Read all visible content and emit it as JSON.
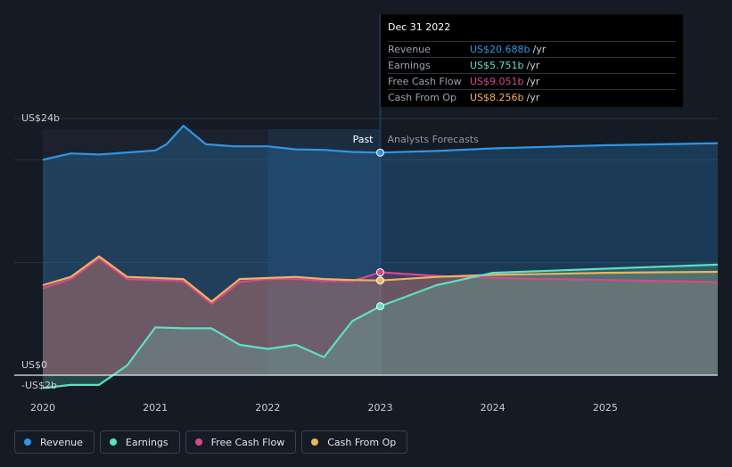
{
  "chart_data": {
    "type": "area",
    "y_axis": {
      "labels": [
        "US$24b",
        "US$0",
        "-US$2b"
      ],
      "ylim": [
        -2,
        24
      ]
    },
    "x_axis": {
      "tick_labels": [
        "2020",
        "2021",
        "2022",
        "2023",
        "2024",
        "2025"
      ],
      "xlim": [
        2020.0,
        2026.0
      ]
    },
    "regions": {
      "past_label": "Past",
      "forecast_label": "Analysts Forecasts",
      "divider_x": 2023.0
    },
    "series": [
      {
        "name": "Revenue",
        "color": "#2f96e8",
        "fill": true,
        "x": [
          2020.0,
          2020.25,
          2020.5,
          2020.75,
          2021.0,
          2021.1,
          2021.25,
          2021.45,
          2021.7,
          2022.0,
          2022.25,
          2022.5,
          2022.75,
          2023.0,
          2023.5,
          2024.0,
          2024.5,
          2025.0,
          2025.5,
          2026.0
        ],
        "y": [
          20.0,
          20.6,
          20.5,
          20.7,
          20.9,
          21.5,
          23.3,
          21.5,
          21.3,
          21.3,
          21.0,
          20.95,
          20.75,
          20.69,
          20.85,
          21.1,
          21.25,
          21.4,
          21.5,
          21.6
        ]
      },
      {
        "name": "Earnings",
        "color": "#5fe0c3",
        "fill": true,
        "x": [
          2020.0,
          2020.25,
          2020.5,
          2020.75,
          2021.0,
          2021.25,
          2021.5,
          2021.75,
          2022.0,
          2022.25,
          2022.5,
          2022.75,
          2023.0,
          2023.5,
          2024.0,
          2024.5,
          2025.0,
          2025.5,
          2026.0
        ],
        "y": [
          -2.2,
          -1.9,
          -1.9,
          0.0,
          3.7,
          3.6,
          3.6,
          2.0,
          1.6,
          2.0,
          0.8,
          4.3,
          5.751,
          7.8,
          9.0,
          9.2,
          9.4,
          9.6,
          9.8
        ]
      },
      {
        "name": "Free Cash Flow",
        "color": "#d44a8c",
        "fill": true,
        "x": [
          2020.0,
          2020.25,
          2020.5,
          2020.75,
          2021.0,
          2021.25,
          2021.5,
          2021.75,
          2022.0,
          2022.25,
          2022.5,
          2022.75,
          2023.0,
          2023.5,
          2024.0,
          2024.5,
          2025.0,
          2025.5,
          2026.0
        ],
        "y": [
          7.5,
          8.4,
          10.4,
          8.4,
          8.3,
          8.2,
          6.0,
          8.1,
          8.4,
          8.4,
          8.2,
          8.2,
          9.051,
          8.7,
          8.5,
          8.4,
          8.3,
          8.2,
          8.1
        ]
      },
      {
        "name": "Cash From Op",
        "color": "#f0b25e",
        "fill": true,
        "x": [
          2020.0,
          2020.25,
          2020.5,
          2020.75,
          2021.0,
          2021.25,
          2021.5,
          2021.75,
          2022.0,
          2022.25,
          2022.5,
          2022.75,
          2023.0,
          2023.5,
          2024.0,
          2024.5,
          2025.0,
          2025.5,
          2026.0
        ],
        "y": [
          7.8,
          8.6,
          10.6,
          8.6,
          8.5,
          8.4,
          6.2,
          8.4,
          8.5,
          8.6,
          8.4,
          8.3,
          8.256,
          8.6,
          8.8,
          8.9,
          9.0,
          9.05,
          9.1
        ]
      }
    ],
    "highlight_x": 2023.0
  },
  "tooltip": {
    "date": "Dec 31 2022",
    "rows": [
      {
        "name": "Revenue",
        "value": "US$20.688b",
        "unit": "/yr",
        "color": "#2f96e8"
      },
      {
        "name": "Earnings",
        "value": "US$5.751b",
        "unit": "/yr",
        "color": "#5fe0c3"
      },
      {
        "name": "Free Cash Flow",
        "value": "US$9.051b",
        "unit": "/yr",
        "color": "#d44a8c"
      },
      {
        "name": "Cash From Op",
        "value": "US$8.256b",
        "unit": "/yr",
        "color": "#f0b25e"
      }
    ]
  },
  "legend": [
    {
      "label": "Revenue",
      "color": "#2f96e8"
    },
    {
      "label": "Earnings",
      "color": "#5fe0c3"
    },
    {
      "label": "Free Cash Flow",
      "color": "#d44a8c"
    },
    {
      "label": "Cash From Op",
      "color": "#f0b25e"
    }
  ]
}
